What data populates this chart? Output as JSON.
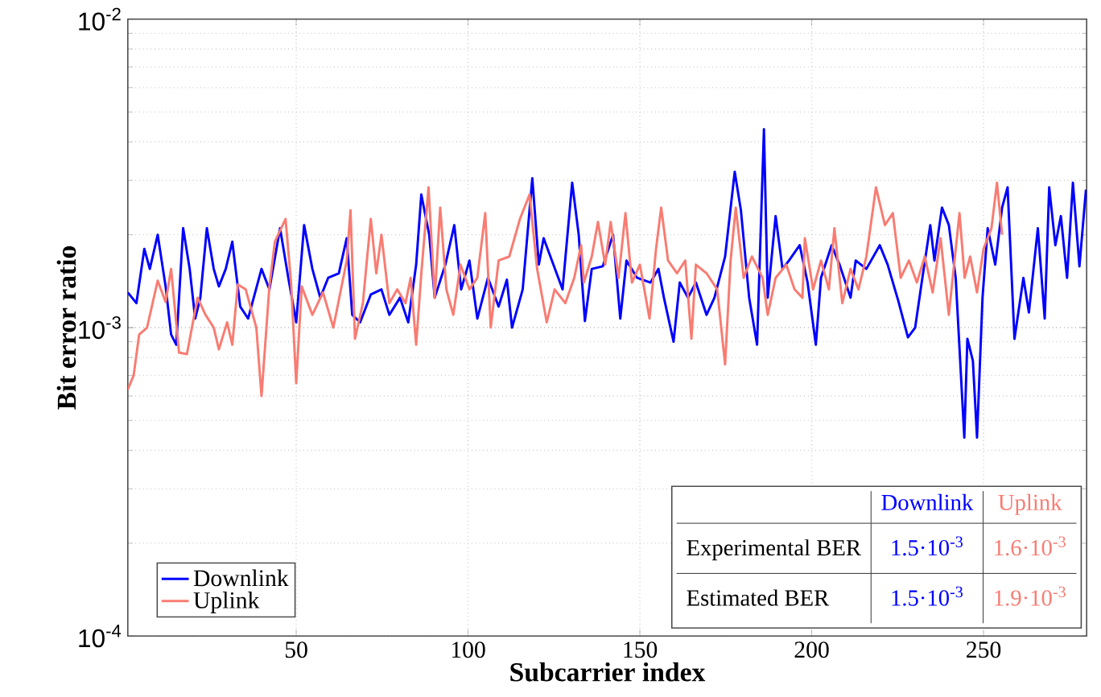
{
  "chart_data": {
    "type": "line",
    "xlabel": "Subcarrier index",
    "ylabel": "Bit error ratio",
    "xlim": [
      1,
      280
    ],
    "xticks": [
      50,
      100,
      150,
      200,
      250
    ],
    "ylim": [
      0.0001,
      0.01
    ],
    "yticks": [
      {
        "value": 0.0001,
        "label": "10$^{-4}$"
      },
      {
        "value": 0.001,
        "label": "10$^{-3}$"
      },
      {
        "value": 0.01,
        "label": "10$^{-2}$"
      }
    ],
    "log": "y",
    "grid": true,
    "legend": "bottom left",
    "annotations": [
      "Experimental BER",
      "Estimated BER",
      "1.5·10$^{-3}$",
      "1.6·10$^{-3}$",
      "1.5·10$^{-3}$",
      "1.9·10$^{-3}$"
    ],
    "series": [
      {
        "name": "Downlink",
        "color": "#0000ff",
        "x": [
          1,
          3.5,
          5.8,
          7.4,
          9.7,
          12,
          13.6,
          15.1,
          17.1,
          19,
          20.6,
          22.1,
          24,
          26,
          27.5,
          29.5,
          31.4,
          33.7,
          36,
          39.9,
          42.2,
          45.3,
          47.7,
          50,
          52.3,
          54.7,
          57,
          59.3,
          62.4,
          64.7,
          66.3,
          68.6,
          71.7,
          74.8,
          77.1,
          80.2,
          82.6,
          84.9,
          86.4,
          88.7,
          90.3,
          93.4,
          96,
          98,
          100.4,
          102.7,
          105.8,
          108.9,
          111.3,
          112.8,
          115.9,
          118.7,
          120.6,
          122,
          124.4,
          127.5,
          130.3,
          132.2,
          134,
          136,
          139.2,
          142.2,
          144.3,
          146.1,
          149.2,
          153.1,
          155.4,
          157,
          159.8,
          161.6,
          164,
          166.3,
          169.4,
          171.7,
          174.8,
          177.6,
          179.4,
          181.8,
          184.1,
          186.1,
          187.2,
          189.5,
          191.5,
          193.4,
          196.5,
          198.8,
          201.2,
          202.7,
          205.8,
          208.1,
          211.3,
          212.8,
          215.9,
          219.8,
          222.1,
          225.2,
          228,
          230.1,
          232.2,
          234.5,
          235.7,
          237.9,
          239.9,
          241.9,
          244.4,
          245.3,
          246.9,
          248.1,
          249.7,
          251.2,
          253.4,
          255.4,
          257,
          259,
          261.6,
          263.2,
          265.8,
          267.8,
          269.1,
          270.9,
          272.5,
          274.3,
          276,
          277.9,
          279.8
        ],
        "values": [
          0.0013,
          0.0012,
          0.0018,
          0.00155,
          0.002,
          0.00136,
          0.00095,
          0.00088,
          0.0021,
          0.00155,
          0.00107,
          0.00125,
          0.0021,
          0.00155,
          0.00136,
          0.00155,
          0.0019,
          0.00117,
          0.00107,
          0.00155,
          0.00133,
          0.0021,
          0.00145,
          0.00104,
          0.00215,
          0.00155,
          0.00125,
          0.00145,
          0.0015,
          0.00195,
          0.0011,
          0.00104,
          0.00128,
          0.00133,
          0.0011,
          0.00125,
          0.00104,
          0.0016,
          0.0027,
          0.002,
          0.00125,
          0.0016,
          0.00215,
          0.00133,
          0.00165,
          0.00107,
          0.00145,
          0.00117,
          0.00143,
          0.001,
          0.00133,
          0.00305,
          0.0016,
          0.00195,
          0.00165,
          0.00133,
          0.00295,
          0.002,
          0.00105,
          0.00155,
          0.00158,
          0.002,
          0.00107,
          0.00165,
          0.00145,
          0.0014,
          0.00155,
          0.00125,
          0.0009,
          0.0014,
          0.00125,
          0.0014,
          0.0011,
          0.00125,
          0.0017,
          0.0032,
          0.0024,
          0.00125,
          0.00088,
          0.0044,
          0.00125,
          0.0023,
          0.00155,
          0.00165,
          0.00185,
          0.0014,
          0.00088,
          0.00145,
          0.00185,
          0.0016,
          0.00125,
          0.00165,
          0.00155,
          0.00185,
          0.0016,
          0.00122,
          0.00093,
          0.001,
          0.00145,
          0.00215,
          0.00165,
          0.00245,
          0.00215,
          0.00145,
          0.00044,
          0.00092,
          0.00078,
          0.00044,
          0.00125,
          0.0021,
          0.0016,
          0.00245,
          0.00285,
          0.00092,
          0.00145,
          0.00112,
          0.0021,
          0.00107,
          0.00285,
          0.00185,
          0.0023,
          0.00145,
          0.00295,
          0.00158,
          0.0028
        ]
      },
      {
        "name": "Uplink",
        "color": "#f87c72",
        "x": [
          1,
          2.7,
          4.3,
          6.6,
          9.7,
          12,
          13.6,
          15.9,
          18.2,
          21.3,
          23.6,
          26,
          27.5,
          29.9,
          31.4,
          33,
          35.3,
          38.4,
          39.9,
          42.2,
          43.8,
          46.9,
          48.5,
          50,
          51.6,
          54.7,
          57.8,
          60.8,
          64.7,
          65.8,
          67.1,
          69.4,
          71.7,
          73.3,
          74.8,
          77.1,
          79.4,
          81.8,
          83.3,
          84.9,
          86.4,
          88.5,
          90.3,
          91.9,
          93.7,
          95.7,
          97.8,
          100.4,
          102.7,
          105,
          106.6,
          108.9,
          112,
          115.1,
          117.9,
          120.1,
          122.9,
          125.2,
          128.3,
          130.9,
          132.9,
          133.7,
          136,
          137.8,
          139.9,
          141.5,
          143.8,
          145.8,
          147.7,
          150,
          152.8,
          154.7,
          156.2,
          158.2,
          160.8,
          163.2,
          165,
          166.3,
          169.4,
          172.5,
          174.8,
          176.4,
          177.9,
          180.2,
          182.6,
          185.7,
          187.2,
          189.5,
          192.6,
          195,
          197.3,
          198,
          200.4,
          202.7,
          205,
          206.6,
          208.9,
          211.3,
          213.6,
          215.9,
          218.7,
          221.3,
          223.6,
          225.9,
          228.3,
          230.6,
          232.9,
          235.2,
          237.5,
          239.9,
          243,
          244.5,
          246.1,
          248.1,
          250,
          252.3,
          253.9,
          255.4
        ],
        "values": [
          0.00063,
          0.0007,
          0.00095,
          0.001,
          0.00142,
          0.00121,
          0.00155,
          0.00083,
          0.00082,
          0.00125,
          0.0011,
          0.001,
          0.00085,
          0.00104,
          0.00088,
          0.00138,
          0.00133,
          0.001,
          0.0006,
          0.00136,
          0.0019,
          0.00225,
          0.0014,
          0.00066,
          0.00136,
          0.0011,
          0.0013,
          0.001,
          0.00165,
          0.0024,
          0.00092,
          0.0012,
          0.00225,
          0.0015,
          0.002,
          0.0012,
          0.00133,
          0.0012,
          0.00145,
          0.00088,
          0.0015,
          0.00285,
          0.00125,
          0.00245,
          0.00133,
          0.0011,
          0.0016,
          0.00133,
          0.00145,
          0.00235,
          0.001,
          0.00165,
          0.0017,
          0.00225,
          0.0027,
          0.00155,
          0.00104,
          0.00133,
          0.0012,
          0.00145,
          0.00185,
          0.0014,
          0.0017,
          0.0022,
          0.0016,
          0.0022,
          0.00145,
          0.00235,
          0.0014,
          0.0016,
          0.00107,
          0.0018,
          0.00245,
          0.00165,
          0.0015,
          0.00165,
          0.00092,
          0.0016,
          0.0015,
          0.00133,
          0.00076,
          0.00165,
          0.00245,
          0.00145,
          0.0017,
          0.00145,
          0.0011,
          0.00145,
          0.0016,
          0.00133,
          0.00125,
          0.00195,
          0.00133,
          0.00165,
          0.00133,
          0.0021,
          0.0012,
          0.00155,
          0.00133,
          0.0017,
          0.00285,
          0.00215,
          0.00235,
          0.00145,
          0.00165,
          0.0014,
          0.0017,
          0.0013,
          0.00195,
          0.0011,
          0.00235,
          0.00145,
          0.0017,
          0.0013,
          0.0018,
          0.0021,
          0.00295,
          0.002
        ]
      }
    ]
  }
}
